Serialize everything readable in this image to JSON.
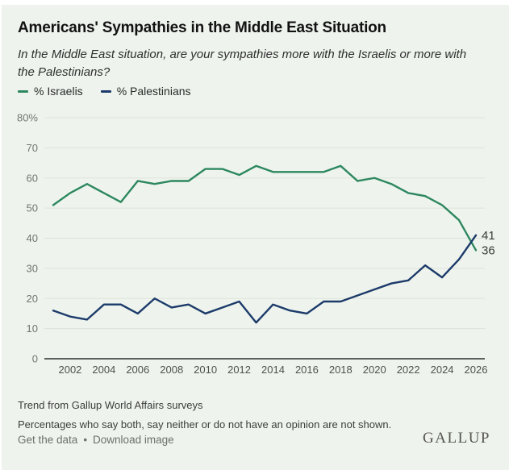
{
  "header": {
    "title": "Americans' Sympathies in the Middle East Situation",
    "subtitle": "In the Middle East situation, are your sympathies more with the Israelis or more with the Palestinians?"
  },
  "legend": [
    {
      "label": "% Israelis",
      "color": "#2d875f"
    },
    {
      "label": "% Palestinians",
      "color": "#1c3a6a"
    }
  ],
  "chart_data": {
    "type": "line",
    "title": "Americans' Sympathies in the Middle East Situation",
    "x": [
      2001,
      2002,
      2003,
      2004,
      2005,
      2006,
      2007,
      2008,
      2009,
      2010,
      2011,
      2012,
      2013,
      2014,
      2015,
      2016,
      2017,
      2018,
      2019,
      2020,
      2021,
      2022,
      2023,
      2024,
      2025,
      2026
    ],
    "series": [
      {
        "name": "% Israelis",
        "color": "#2d875f",
        "values": [
          51,
          55,
          58,
          55,
          52,
          59,
          58,
          59,
          59,
          63,
          63,
          61,
          64,
          62,
          62,
          62,
          62,
          64,
          59,
          60,
          58,
          55,
          54,
          51,
          46,
          36
        ]
      },
      {
        "name": "% Palestinians",
        "color": "#1c3a6a",
        "values": [
          16,
          14,
          13,
          18,
          18,
          15,
          20,
          17,
          18,
          15,
          17,
          19,
          12,
          18,
          16,
          15,
          19,
          19,
          21,
          23,
          25,
          26,
          31,
          27,
          33,
          41
        ]
      }
    ],
    "ylim": [
      0,
      80
    ],
    "yticks": [
      0,
      10,
      20,
      30,
      40,
      50,
      60,
      70,
      80
    ],
    "ytick_top_label": "80%",
    "xticks": [
      2002,
      2004,
      2006,
      2008,
      2010,
      2012,
      2014,
      2016,
      2018,
      2020,
      2022,
      2024,
      2026
    ],
    "grid": true,
    "legend_position": "top-left",
    "grid_color": "#dde3dc",
    "axis_color": "#2e2e2e",
    "end_labels": [
      {
        "series": "% Palestinians",
        "value": 41,
        "label": "41"
      },
      {
        "series": "% Israelis",
        "value": 36,
        "label": "36"
      }
    ]
  },
  "footer": {
    "note1": "Trend from Gallup World Affairs surveys",
    "note2": "Percentages who say both, say neither or do not have an opinion are not shown.",
    "link1": "Get the data",
    "separator": "•",
    "link2": "Download image",
    "logo": "GALLUP"
  }
}
